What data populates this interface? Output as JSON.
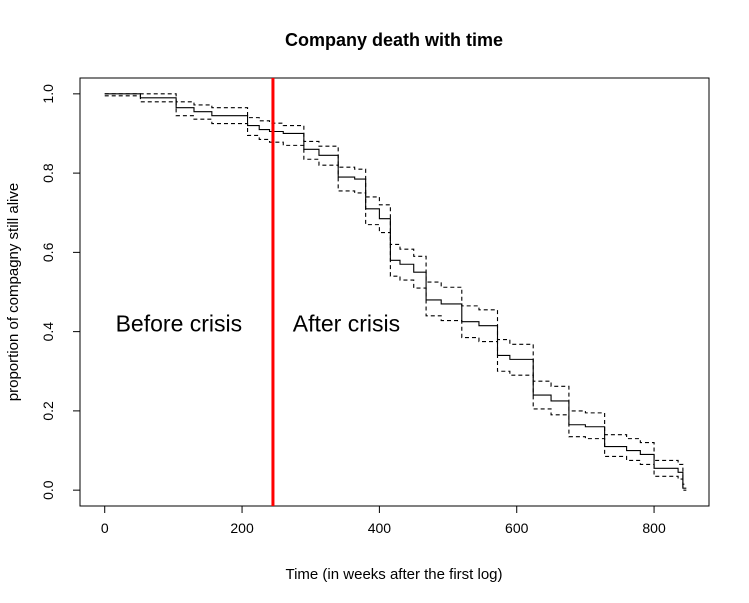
{
  "chart_data": {
    "type": "line",
    "title": "Company death with time",
    "xlabel": "Time (in weeks after the first log)",
    "ylabel": "proportion of compagny still alive",
    "xlim": [
      -36,
      880
    ],
    "ylim": [
      -0.04,
      1.04
    ],
    "xticks": [
      0,
      200,
      400,
      600,
      800
    ],
    "yticks": [
      0.0,
      0.2,
      0.4,
      0.6,
      0.8,
      1.0
    ],
    "xtick_labels": [
      "0",
      "200",
      "400",
      "600",
      "800"
    ],
    "ytick_labels": [
      "0.0",
      "0.2",
      "0.4",
      "0.6",
      "0.8",
      "1.0"
    ],
    "grid": false,
    "legend": "none",
    "series": [
      {
        "style": "solid",
        "color": "#000000",
        "x": [
          0,
          52,
          104,
          130,
          156,
          208,
          225,
          240,
          260,
          290,
          312,
          340,
          364,
          380,
          400,
          416,
          430,
          450,
          468,
          490,
          520,
          545,
          572,
          590,
          624,
          650,
          676,
          700,
          728,
          760,
          780,
          800,
          835,
          842
        ],
        "y": [
          1.0,
          0.99,
          0.965,
          0.955,
          0.945,
          0.92,
          0.91,
          0.905,
          0.9,
          0.86,
          0.845,
          0.79,
          0.785,
          0.71,
          0.685,
          0.58,
          0.57,
          0.55,
          0.48,
          0.47,
          0.425,
          0.415,
          0.34,
          0.33,
          0.24,
          0.225,
          0.165,
          0.16,
          0.11,
          0.1,
          0.09,
          0.055,
          0.045,
          0.005
        ]
      },
      {
        "style": "dashed",
        "color": "#000000",
        "x": [
          0,
          52,
          104,
          130,
          156,
          208,
          225,
          240,
          260,
          290,
          312,
          340,
          364,
          380,
          400,
          416,
          430,
          450,
          468,
          490,
          520,
          545,
          572,
          590,
          624,
          650,
          676,
          700,
          728,
          760,
          780,
          800,
          835,
          842
        ],
        "y": [
          1.0,
          1.0,
          0.98,
          0.972,
          0.965,
          0.94,
          0.932,
          0.926,
          0.92,
          0.88,
          0.868,
          0.815,
          0.81,
          0.74,
          0.72,
          0.62,
          0.608,
          0.59,
          0.525,
          0.512,
          0.465,
          0.455,
          0.38,
          0.368,
          0.275,
          0.262,
          0.2,
          0.195,
          0.14,
          0.13,
          0.12,
          0.075,
          0.065,
          0.015
        ]
      },
      {
        "style": "dashed",
        "color": "#000000",
        "x": [
          0,
          52,
          104,
          130,
          156,
          208,
          225,
          240,
          260,
          290,
          312,
          340,
          364,
          380,
          400,
          416,
          430,
          450,
          468,
          490,
          520,
          545,
          572,
          590,
          624,
          650,
          676,
          700,
          728,
          760,
          780,
          800,
          835,
          842
        ],
        "y": [
          0.995,
          0.98,
          0.945,
          0.936,
          0.925,
          0.895,
          0.885,
          0.878,
          0.87,
          0.835,
          0.82,
          0.755,
          0.75,
          0.67,
          0.65,
          0.54,
          0.53,
          0.51,
          0.44,
          0.428,
          0.385,
          0.375,
          0.3,
          0.29,
          0.205,
          0.19,
          0.135,
          0.13,
          0.085,
          0.075,
          0.065,
          0.035,
          0.028,
          0.0
        ]
      }
    ],
    "vline": {
      "x": 245,
      "color": "#ff0000"
    },
    "annotations": [
      {
        "text": "Before crisis",
        "x": 108,
        "y": 0.4
      },
      {
        "text": "After crisis",
        "x": 352,
        "y": 0.4
      }
    ]
  }
}
